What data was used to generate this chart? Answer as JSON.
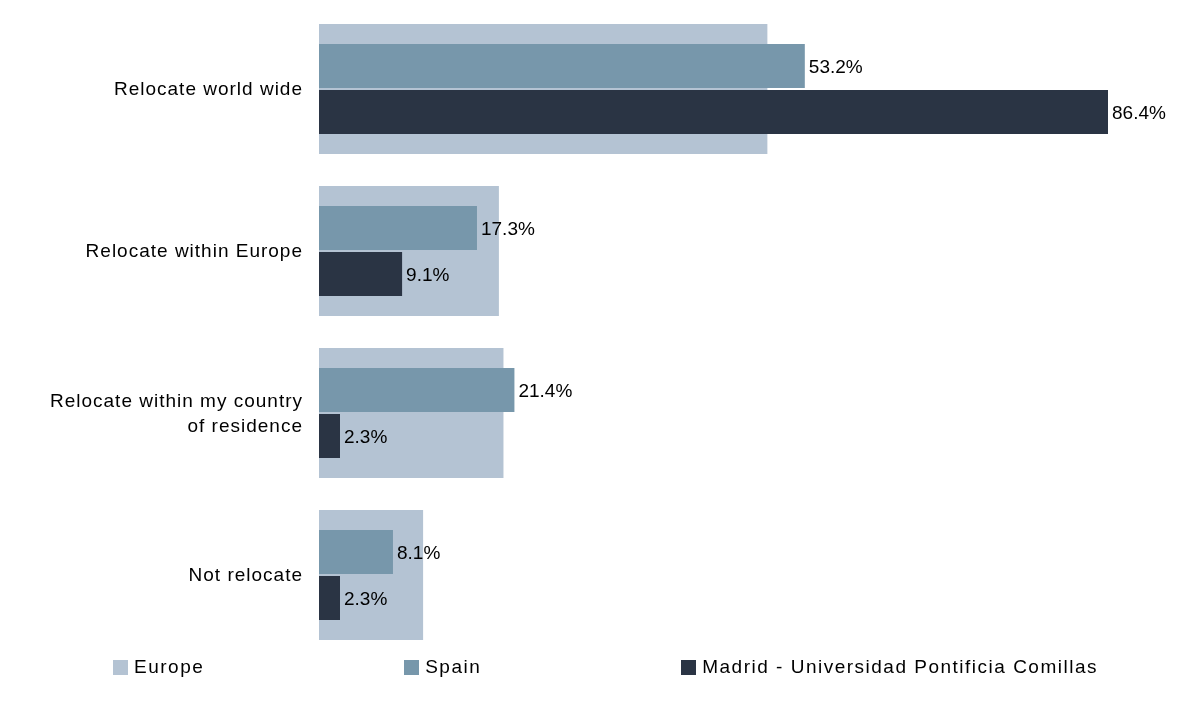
{
  "chart_data": {
    "type": "bar",
    "orientation": "horizontal",
    "categories": [
      "Relocate world wide",
      "Relocate within Europe",
      "Relocate within my country of residence",
      "Not relocate"
    ],
    "series": [
      {
        "name": "Europe",
        "color": "#b4c3d3",
        "values": [
          49.1,
          19.7,
          20.2,
          11.4
        ]
      },
      {
        "name": "Spain",
        "color": "#7797ab",
        "values": [
          53.2,
          17.3,
          21.4,
          8.1
        ],
        "value_labels": [
          "53.2%",
          "17.3%",
          "21.4%",
          "8.1%"
        ]
      },
      {
        "name": "Madrid - Universidad Pontificia Comillas",
        "color": "#2a3444",
        "values": [
          86.4,
          9.1,
          2.3,
          2.3
        ],
        "value_labels": [
          "86.4%",
          "9.1%",
          "2.3%",
          "2.3%"
        ]
      }
    ],
    "legend": "bottom",
    "grid": false
  }
}
